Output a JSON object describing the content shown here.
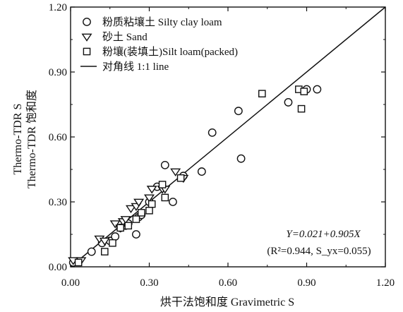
{
  "chart_data": {
    "type": "scatter",
    "xlabel": "烘干法饱和度 Gravimetric S",
    "ylabel_line1": "Thermo-TDR S",
    "ylabel_line2": "Thermo-TDR 饱和度",
    "xlim": [
      0.0,
      1.2
    ],
    "ylim": [
      0.0,
      1.2
    ],
    "x_ticks": [
      "0.00",
      "0.30",
      "0.60",
      "0.90",
      "1.20"
    ],
    "y_ticks": [
      "0.00",
      "0.30",
      "0.60",
      "0.90",
      "1.20"
    ],
    "grid": false,
    "legend_position": "top-left",
    "series": [
      {
        "name": "粉质粘壤土 Silty clay loam",
        "marker": "circle",
        "points": [
          [
            0.01,
            0.02
          ],
          [
            0.08,
            0.07
          ],
          [
            0.12,
            0.11
          ],
          [
            0.15,
            0.12
          ],
          [
            0.17,
            0.14
          ],
          [
            0.19,
            0.18
          ],
          [
            0.21,
            0.19
          ],
          [
            0.22,
            0.2
          ],
          [
            0.25,
            0.15
          ],
          [
            0.26,
            0.23
          ],
          [
            0.27,
            0.24
          ],
          [
            0.3,
            0.3
          ],
          [
            0.33,
            0.37
          ],
          [
            0.36,
            0.47
          ],
          [
            0.39,
            0.3
          ],
          [
            0.43,
            0.42
          ],
          [
            0.5,
            0.44
          ],
          [
            0.54,
            0.62
          ],
          [
            0.64,
            0.72
          ],
          [
            0.65,
            0.5
          ],
          [
            0.83,
            0.76
          ],
          [
            0.9,
            0.82
          ],
          [
            0.94,
            0.82
          ]
        ]
      },
      {
        "name": "砂土 Sand",
        "marker": "triangle",
        "points": [
          [
            0.01,
            0.03
          ],
          [
            0.04,
            0.03
          ],
          [
            0.11,
            0.13
          ],
          [
            0.13,
            0.12
          ],
          [
            0.17,
            0.2
          ],
          [
            0.19,
            0.18
          ],
          [
            0.2,
            0.21
          ],
          [
            0.21,
            0.22
          ],
          [
            0.23,
            0.27
          ],
          [
            0.25,
            0.28
          ],
          [
            0.26,
            0.3
          ],
          [
            0.3,
            0.32
          ],
          [
            0.31,
            0.36
          ],
          [
            0.35,
            0.36
          ],
          [
            0.36,
            0.36
          ],
          [
            0.4,
            0.44
          ],
          [
            0.43,
            0.41
          ]
        ]
      },
      {
        "name": "粉壤(装填土)Silt loam(packed)",
        "marker": "square",
        "points": [
          [
            0.03,
            0.02
          ],
          [
            0.13,
            0.07
          ],
          [
            0.16,
            0.11
          ],
          [
            0.19,
            0.18
          ],
          [
            0.22,
            0.19
          ],
          [
            0.25,
            0.22
          ],
          [
            0.27,
            0.25
          ],
          [
            0.3,
            0.26
          ],
          [
            0.31,
            0.29
          ],
          [
            0.35,
            0.38
          ],
          [
            0.36,
            0.32
          ],
          [
            0.42,
            0.41
          ],
          [
            0.73,
            0.8
          ],
          [
            0.87,
            0.82
          ],
          [
            0.88,
            0.73
          ],
          [
            0.89,
            0.81
          ]
        ]
      }
    ],
    "lines": [
      {
        "name": "对角线 1:1 line",
        "x": [
          0.0,
          1.2
        ],
        "y": [
          0.0,
          1.2
        ]
      }
    ],
    "annotation": {
      "equation": "Y=0.021+0.905X",
      "stats": "(R²=0.944, S_yx=0.055)"
    }
  }
}
